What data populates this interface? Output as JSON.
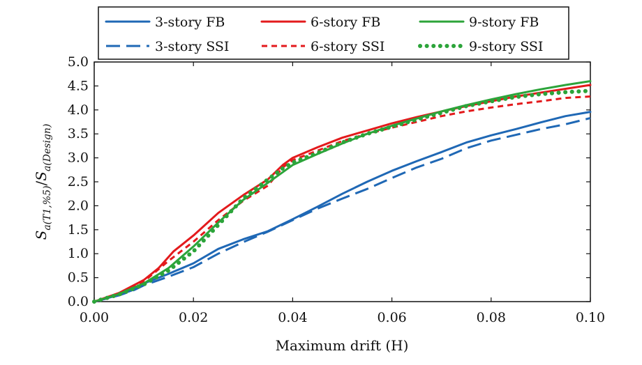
{
  "chart_data": {
    "type": "line",
    "title": "",
    "xlabel": "Maximum drift (H)",
    "ylabel": "S_a(T1,%5) / S_a(Design)",
    "ylabel_parts": {
      "main1": "S",
      "sub1": "a(T1,%5)",
      "slash": "/",
      "main2": "S",
      "sub2": "a(Design)"
    },
    "xlim": [
      0.0,
      0.1
    ],
    "ylim": [
      0.0,
      5.0
    ],
    "xticks": [
      "0.00",
      "0.02",
      "0.04",
      "0.06",
      "0.08",
      "0.10"
    ],
    "xtick_values": [
      0.0,
      0.02,
      0.04,
      0.06,
      0.08,
      0.1
    ],
    "yticks": [
      "0.0",
      "0.5",
      "1.0",
      "1.5",
      "2.0",
      "2.5",
      "3.0",
      "3.5",
      "4.0",
      "4.5",
      "5.0"
    ],
    "ytick_values": [
      0.0,
      0.5,
      1.0,
      1.5,
      2.0,
      2.5,
      3.0,
      3.5,
      4.0,
      4.5,
      5.0
    ],
    "legend_position": "top",
    "grid": false,
    "series": [
      {
        "name": "3-story FB",
        "color": "#1f68b5",
        "style": "solid",
        "x": [
          0,
          0.005,
          0.008,
          0.01,
          0.015,
          0.02,
          0.025,
          0.03,
          0.035,
          0.04,
          0.045,
          0.05,
          0.055,
          0.06,
          0.065,
          0.07,
          0.075,
          0.08,
          0.085,
          0.09,
          0.095,
          0.1
        ],
        "y": [
          0,
          0.14,
          0.25,
          0.38,
          0.58,
          0.8,
          1.1,
          1.3,
          1.47,
          1.72,
          1.98,
          2.25,
          2.5,
          2.73,
          2.93,
          3.12,
          3.32,
          3.47,
          3.6,
          3.74,
          3.87,
          3.96
        ]
      },
      {
        "name": "3-story SSI",
        "color": "#1f68b5",
        "style": "dashed",
        "x": [
          0,
          0.005,
          0.008,
          0.01,
          0.015,
          0.02,
          0.025,
          0.03,
          0.035,
          0.04,
          0.045,
          0.05,
          0.055,
          0.06,
          0.065,
          0.07,
          0.075,
          0.08,
          0.085,
          0.09,
          0.095,
          0.1
        ],
        "y": [
          0,
          0.13,
          0.24,
          0.34,
          0.52,
          0.72,
          1.0,
          1.24,
          1.46,
          1.7,
          1.94,
          2.15,
          2.35,
          2.58,
          2.8,
          2.98,
          3.2,
          3.36,
          3.48,
          3.6,
          3.7,
          3.83
        ]
      },
      {
        "name": "6-story FB",
        "color": "#e31a1c",
        "style": "solid",
        "x": [
          0,
          0.005,
          0.01,
          0.013,
          0.016,
          0.02,
          0.025,
          0.03,
          0.035,
          0.038,
          0.04,
          0.045,
          0.05,
          0.055,
          0.06,
          0.065,
          0.07,
          0.075,
          0.08,
          0.085,
          0.09,
          0.095,
          0.1
        ],
        "y": [
          0,
          0.18,
          0.45,
          0.7,
          1.05,
          1.38,
          1.85,
          2.22,
          2.55,
          2.85,
          3.0,
          3.22,
          3.42,
          3.57,
          3.72,
          3.85,
          3.97,
          4.08,
          4.18,
          4.28,
          4.36,
          4.44,
          4.52
        ]
      },
      {
        "name": "6-story SSI",
        "color": "#e31a1c",
        "style": "dashed-short",
        "x": [
          0,
          0.005,
          0.01,
          0.015,
          0.02,
          0.025,
          0.03,
          0.035,
          0.038,
          0.04,
          0.045,
          0.05,
          0.055,
          0.06,
          0.065,
          0.07,
          0.075,
          0.08,
          0.085,
          0.09,
          0.095,
          0.1
        ],
        "y": [
          0,
          0.16,
          0.42,
          0.85,
          1.25,
          1.7,
          2.1,
          2.42,
          2.8,
          2.95,
          3.15,
          3.35,
          3.5,
          3.63,
          3.75,
          3.87,
          3.97,
          4.05,
          4.12,
          4.18,
          4.25,
          4.28
        ]
      },
      {
        "name": "9-story FB",
        "color": "#2ca43a",
        "style": "solid",
        "x": [
          0,
          0.005,
          0.01,
          0.015,
          0.02,
          0.025,
          0.03,
          0.035,
          0.038,
          0.04,
          0.045,
          0.05,
          0.055,
          0.06,
          0.065,
          0.07,
          0.075,
          0.08,
          0.085,
          0.09,
          0.095,
          0.1
        ],
        "y": [
          0,
          0.16,
          0.38,
          0.7,
          1.15,
          1.65,
          2.12,
          2.48,
          2.7,
          2.85,
          3.08,
          3.3,
          3.5,
          3.67,
          3.82,
          3.97,
          4.1,
          4.22,
          4.33,
          4.43,
          4.52,
          4.6
        ]
      },
      {
        "name": "9-story SSI",
        "color": "#2ca43a",
        "style": "dotted",
        "x": [
          0,
          0.005,
          0.01,
          0.015,
          0.02,
          0.025,
          0.03,
          0.035,
          0.038,
          0.04,
          0.045,
          0.05,
          0.055,
          0.06,
          0.065,
          0.07,
          0.075,
          0.08,
          0.085,
          0.09,
          0.095,
          0.1
        ],
        "y": [
          0,
          0.15,
          0.36,
          0.65,
          1.05,
          1.6,
          2.15,
          2.55,
          2.78,
          2.9,
          3.1,
          3.32,
          3.5,
          3.65,
          3.8,
          3.94,
          4.08,
          4.18,
          4.27,
          4.33,
          4.37,
          4.4
        ]
      }
    ]
  }
}
